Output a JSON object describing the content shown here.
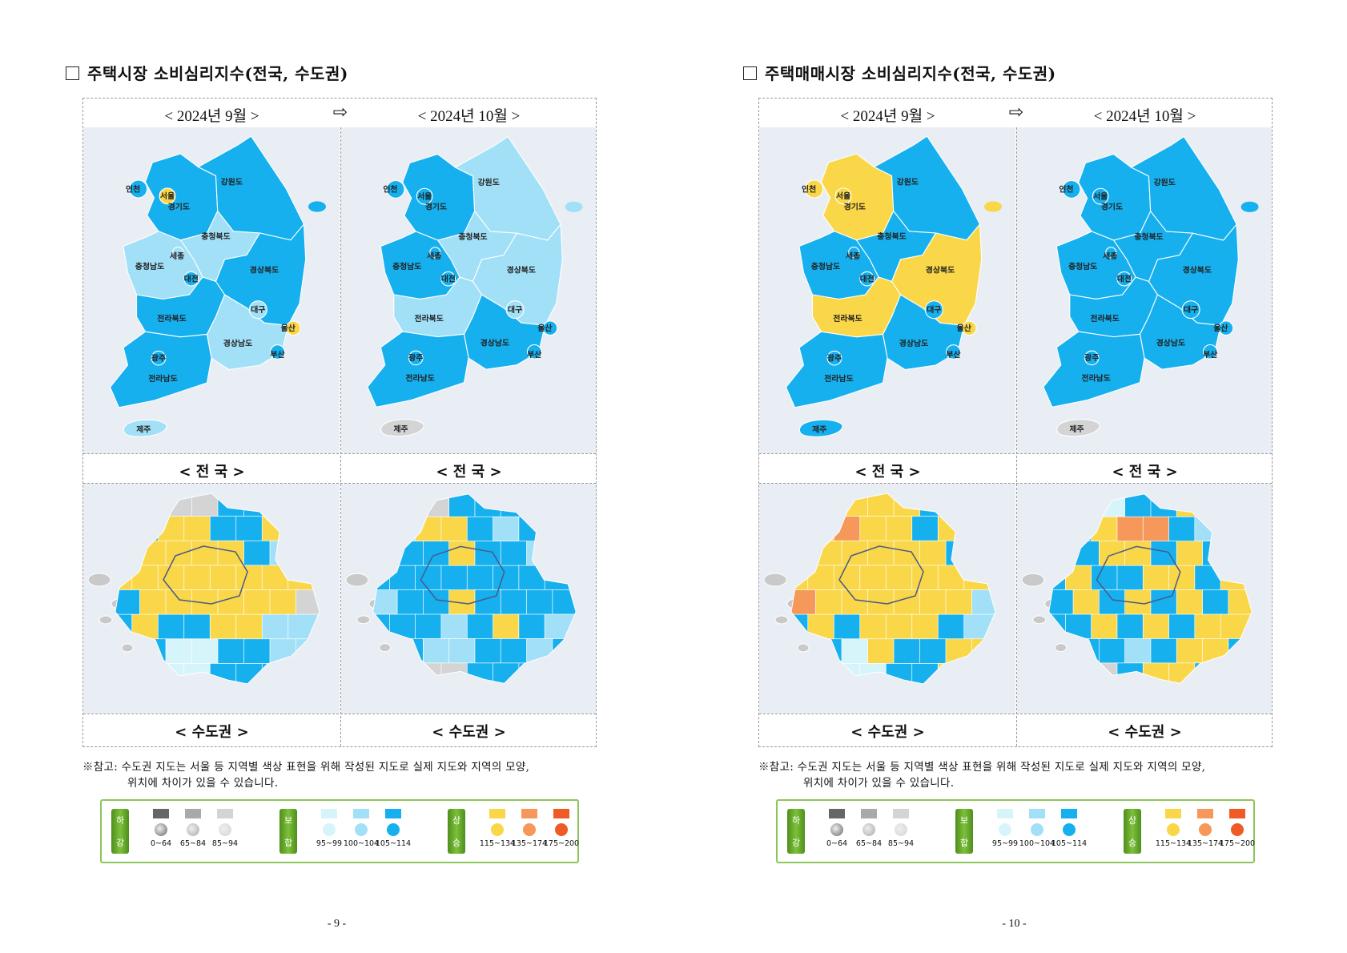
{
  "levels": {
    "G1": {
      "label": "0~64",
      "color": "#666666"
    },
    "G2": {
      "label": "65~84",
      "color": "#a9a9a9"
    },
    "G": {
      "label": "85~94",
      "color": "#d4d4d4"
    },
    "P": {
      "label": "95~99",
      "color": "#d6f5fb"
    },
    "L": {
      "label": "100~104",
      "color": "#a2e0f8"
    },
    "B": {
      "label": "105~114",
      "color": "#16b0ef"
    },
    "Y": {
      "label": "115~134",
      "color": "#f9d748"
    },
    "O": {
      "label": "135~174",
      "color": "#f5985a"
    },
    "R": {
      "label": "175~200",
      "color": "#ef5a27"
    }
  },
  "legend": {
    "groups": [
      {
        "tag": [
          "하",
          "강"
        ],
        "items": [
          "G1",
          "G2",
          "G"
        ]
      },
      {
        "tag": [
          "보",
          "합"
        ],
        "items": [
          "P",
          "L",
          "B"
        ]
      },
      {
        "tag": [
          "상",
          "승"
        ],
        "items": [
          "Y",
          "O",
          "R"
        ]
      }
    ]
  },
  "region_names": {
    "incheon": "인천",
    "seoul": "서울",
    "gyeonggi": "경기도",
    "gangwon": "강원도",
    "chungbuk": "충청북도",
    "sejong": "세종",
    "chungnam": "충청남도",
    "daejeon": "대전",
    "gyeongbuk": "경상북도",
    "daegu": "대구",
    "jeonbuk": "전라북도",
    "ulsan": "울산",
    "gyeongnam": "경상남도",
    "busan": "부산",
    "gwangju": "광주",
    "jeonnam": "전라남도",
    "jeju": "제주"
  },
  "pages": [
    {
      "title": "주택시장 소비심리지수(전국, 수도권)",
      "period_from": "< 2024년 9월 >",
      "period_to": "< 2024년 10월 >",
      "arrow": "⇨",
      "caption_national": "< 전  국 >",
      "caption_capital": "< 수도권 >",
      "note_line1": "※참고: 수도권 지도는 서울 등 지역별 색상 표현을 위해 작성된 지도로 실제 지도와 지역의 모양,",
      "note_line2": "위치에 차이가 있을 수 있습니다.",
      "page_number": "- 9 -",
      "national": [
        {
          "incheon": "B",
          "seoul": "Y",
          "gyeonggi": "B",
          "gangwon": "B",
          "chungbuk": "L",
          "sejong": "L",
          "chungnam": "L",
          "daejeon": "B",
          "gyeongbuk": "B",
          "daegu": "L",
          "jeonbuk": "B",
          "ulsan": "Y",
          "gyeongnam": "L",
          "busan": "B",
          "gwangju": "B",
          "jeonnam": "B",
          "jeju": "L"
        },
        {
          "incheon": "B",
          "seoul": "B",
          "gyeonggi": "B",
          "gangwon": "L",
          "chungbuk": "L",
          "sejong": "B",
          "chungnam": "B",
          "daejeon": "B",
          "gyeongbuk": "L",
          "daegu": "L",
          "jeonbuk": "L",
          "ulsan": "B",
          "gyeongnam": "B",
          "busan": "B",
          "gwangju": "B",
          "jeonnam": "B",
          "jeju": "G"
        }
      ],
      "capital": [
        [
          "GGGGBBBB",
          "BBYYBBYB",
          "BYYYYBLR",
          "YYYYYYYY",
          "BYYYYYYG",
          "BYBBYYLL",
          "BBPPBBLL",
          "GBPPBBBG"
        ],
        [
          "GGGBBBLL",
          "BLYYBLBB",
          "LBBYBBLB",
          "BBBBBBBB",
          "LBBYBBBB",
          "BBBLBYBL",
          "BBLLBBLB",
          "GBGGBBBG"
        ]
      ]
    },
    {
      "title": "주택매매시장 소비심리지수(전국, 수도권)",
      "period_from": "< 2024년 9월 >",
      "period_to": "< 2024년 10월 >",
      "arrow": "⇨",
      "caption_national": "< 전  국 >",
      "caption_capital": "< 수도권 >",
      "note_line1": "※참고: 수도권 지도는 서울 등 지역별 색상 표현을 위해 작성된 지도로 실제 지도와 지역의 모양,",
      "note_line2": "위치에 차이가 있을 수 있습니다.",
      "page_number": "- 10 -",
      "national": [
        {
          "incheon": "Y",
          "seoul": "Y",
          "gyeonggi": "Y",
          "gangwon": "B",
          "chungbuk": "B",
          "sejong": "B",
          "chungnam": "B",
          "daejeon": "B",
          "gyeongbuk": "Y",
          "daegu": "B",
          "jeonbuk": "Y",
          "ulsan": "Y",
          "gyeongnam": "B",
          "busan": "B",
          "gwangju": "B",
          "jeonnam": "B",
          "jeju": "B"
        },
        {
          "incheon": "B",
          "seoul": "B",
          "gyeonggi": "B",
          "gangwon": "B",
          "chungbuk": "B",
          "sejong": "B",
          "chungnam": "B",
          "daejeon": "B",
          "gyeongbuk": "B",
          "daegu": "B",
          "jeonbuk": "B",
          "ulsan": "B",
          "gyeongnam": "B",
          "busan": "B",
          "gwangju": "B",
          "jeonnam": "B",
          "jeju": "G"
        }
      ],
      "capital": [
        [
          "GGYYYBBB",
          "BYOYYBYB",
          "YYYYYYBR",
          "YYYYYYYY",
          "OYYYYYYL",
          "BYBYYYBL",
          "BBPYBBYY",
          "GBPPBBYG"
        ],
        [
          "GPPBBYLL",
          "BBYOOBLB",
          "YBYYBYBL",
          "BYBBYYBY",
          "BYBYBYBY",
          "BBYBYBYY",
          "BBBLBYYB",
          "GGGBYYBG"
        ]
      ]
    }
  ]
}
